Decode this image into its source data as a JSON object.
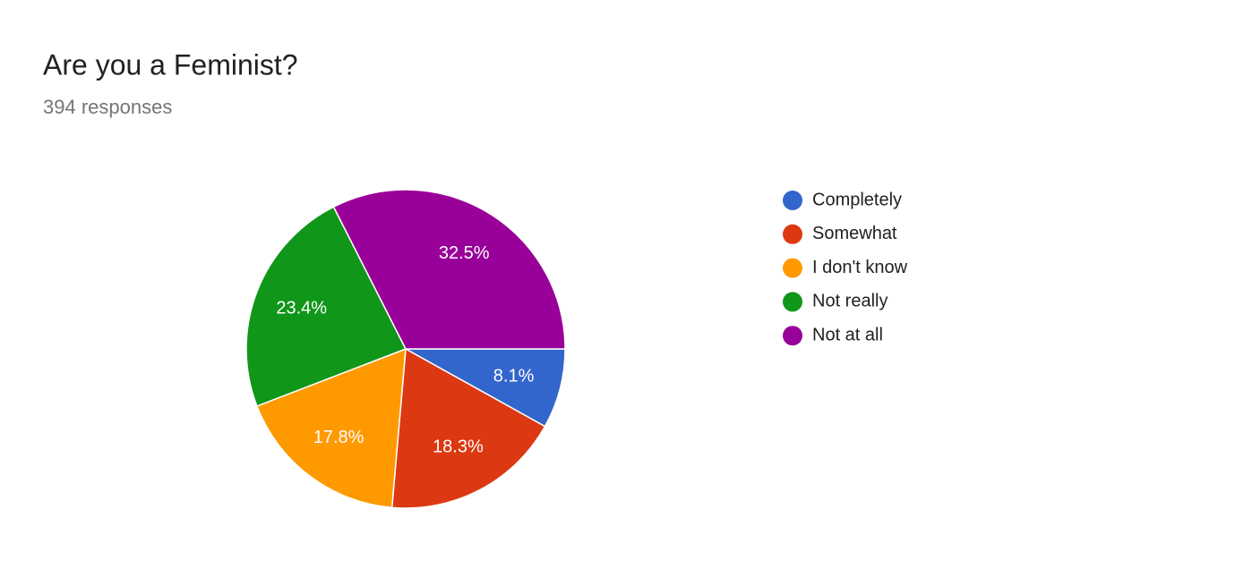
{
  "chart_data": {
    "type": "pie",
    "title": "Are you a Feminist?",
    "subtitle": "394 responses",
    "categories": [
      "Completely",
      "Somewhat",
      "I don't know",
      "Not really",
      "Not at all"
    ],
    "values": [
      8.1,
      18.3,
      17.8,
      23.4,
      32.5
    ],
    "value_labels": [
      "8.1%",
      "18.3%",
      "17.8%",
      "23.4%",
      "32.5%"
    ],
    "colors": [
      "#3366cc",
      "#dc3912",
      "#ff9900",
      "#109618",
      "#990099"
    ],
    "legend": "right"
  }
}
